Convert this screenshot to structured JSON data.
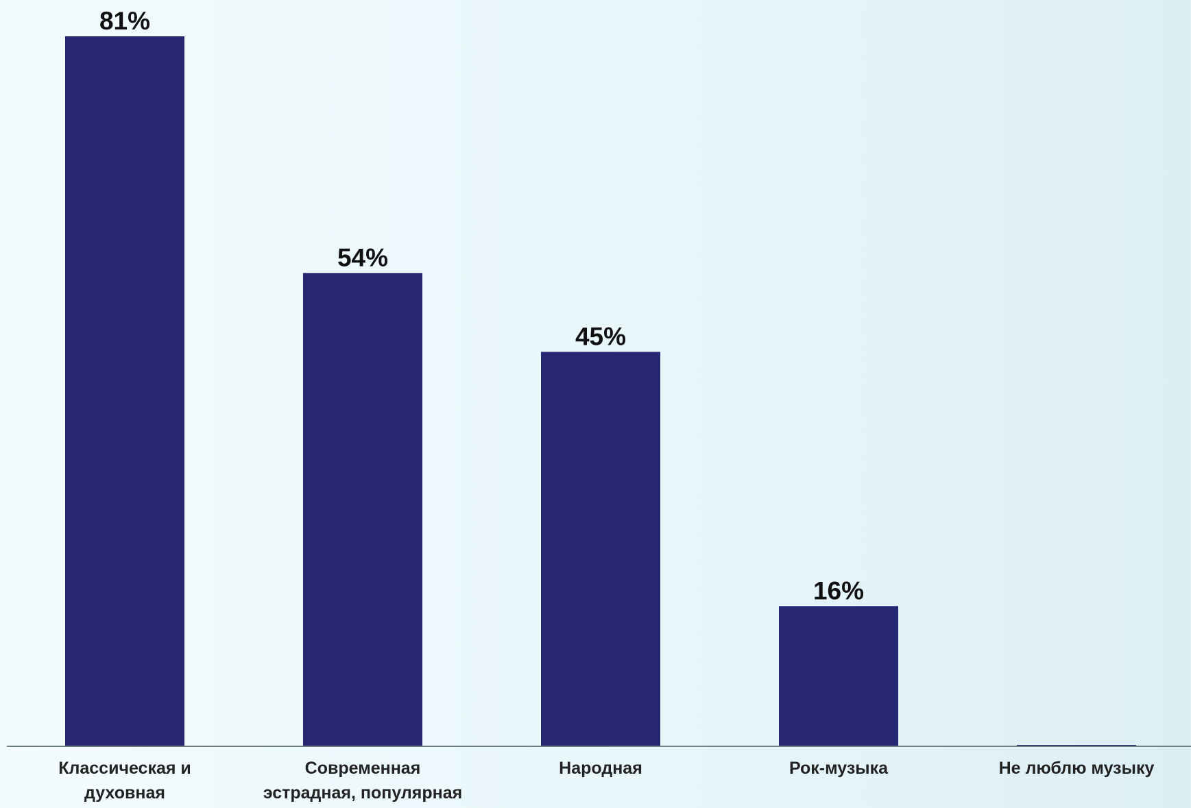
{
  "chart_data": {
    "type": "bar",
    "categories": [
      [
        "Классическая и",
        "духовная"
      ],
      [
        "Современная",
        "эстрадная, популярная"
      ],
      [
        "Народная"
      ],
      [
        "Рок-музыка"
      ],
      [
        "Не люблю музыку"
      ]
    ],
    "values": [
      81,
      54,
      45,
      16,
      0
    ],
    "value_labels": [
      "81%",
      "54%",
      "45%",
      "16%",
      ""
    ],
    "title": "",
    "xlabel": "",
    "ylabel": "",
    "ylim": [
      0,
      81
    ],
    "grid": false,
    "legend": "none",
    "colors": {
      "bar": "#262673",
      "axis": "#6e7f86",
      "label_text": "#222222",
      "value_text": "#111111"
    }
  }
}
